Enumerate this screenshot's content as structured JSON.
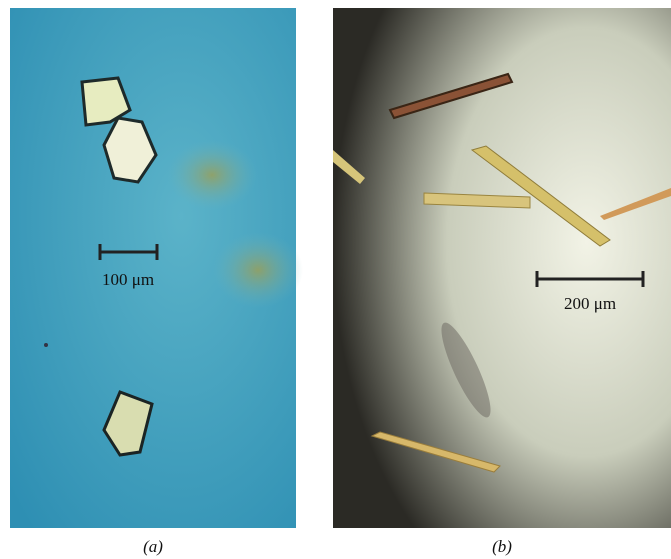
{
  "panels": [
    {
      "label": "(a)",
      "scale_bar": "100 μm"
    },
    {
      "label": "(b)",
      "scale_bar": "200 μm"
    }
  ]
}
